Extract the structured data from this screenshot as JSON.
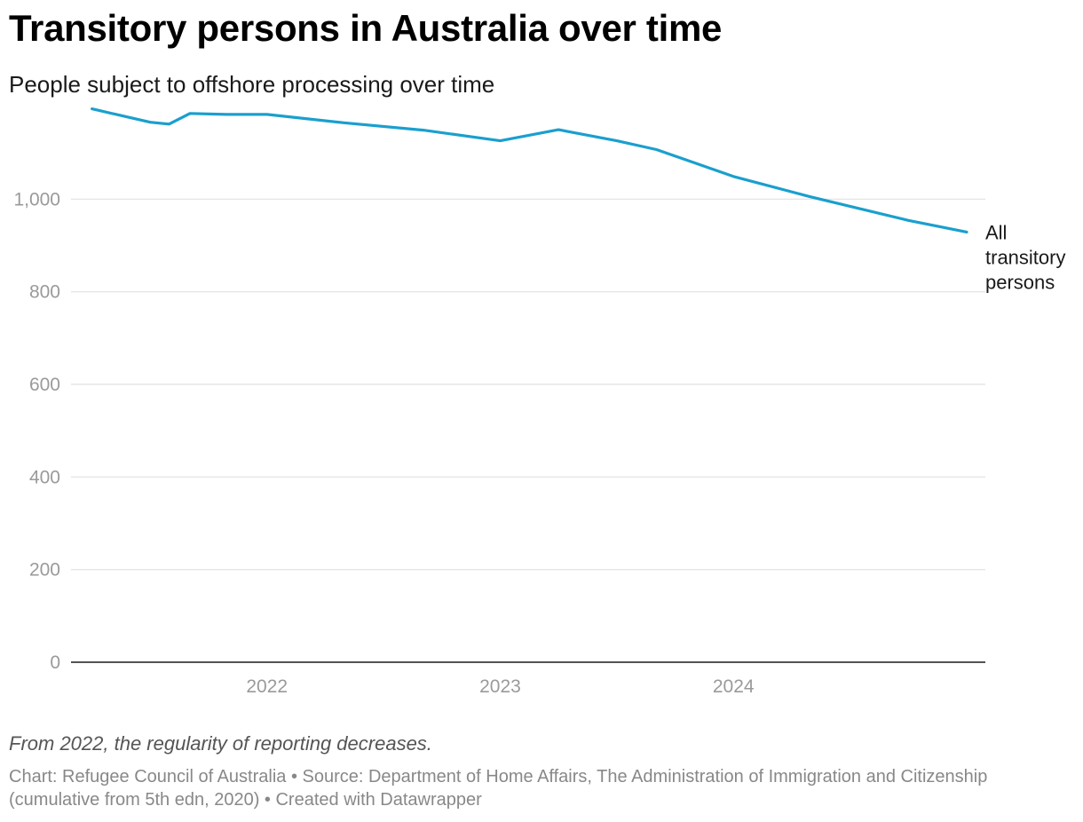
{
  "header": {
    "title": "Transitory persons in Australia over time",
    "subtitle": "People subject to offshore processing over time"
  },
  "note": "From 2022, the regularity of reporting decreases.",
  "footer": {
    "text": "Chart: Refugee Council of Australia • Source: Department of Home Affairs, The Administration of Immigration and Citizenship (cumulative from 5th edn, 2020) • Created with Datawrapper"
  },
  "chart_data": {
    "type": "line",
    "title": "Transitory persons in Australia over time",
    "subtitle": "People subject to offshore processing over time",
    "xlabel": "",
    "ylabel": "",
    "ylim": [
      0,
      1200
    ],
    "xlim": [
      2021.16,
      2025.08
    ],
    "y_ticks": [
      0,
      200,
      400,
      600,
      800,
      1000
    ],
    "y_tick_labels": [
      "0",
      "200",
      "400",
      "600",
      "800",
      "1,000"
    ],
    "x_ticks": [
      2022,
      2023,
      2024
    ],
    "x_tick_labels": [
      "2022",
      "2023",
      "2024"
    ],
    "grid": true,
    "color": "#1a9fce",
    "series": [
      {
        "name": "All transitory persons",
        "label_lines": [
          "All",
          "transitory",
          "persons"
        ],
        "points": [
          {
            "x": 2021.25,
            "y": 1195
          },
          {
            "x": 2021.5,
            "y": 1166
          },
          {
            "x": 2021.58,
            "y": 1162
          },
          {
            "x": 2021.67,
            "y": 1185
          },
          {
            "x": 2021.83,
            "y": 1183
          },
          {
            "x": 2022.0,
            "y": 1183
          },
          {
            "x": 2022.33,
            "y": 1165
          },
          {
            "x": 2022.67,
            "y": 1149
          },
          {
            "x": 2023.0,
            "y": 1126
          },
          {
            "x": 2023.25,
            "y": 1150
          },
          {
            "x": 2023.5,
            "y": 1126
          },
          {
            "x": 2023.67,
            "y": 1107
          },
          {
            "x": 2024.0,
            "y": 1049
          },
          {
            "x": 2024.33,
            "y": 1005
          },
          {
            "x": 2024.75,
            "y": 954
          },
          {
            "x": 2025.0,
            "y": 929
          }
        ]
      }
    ]
  }
}
